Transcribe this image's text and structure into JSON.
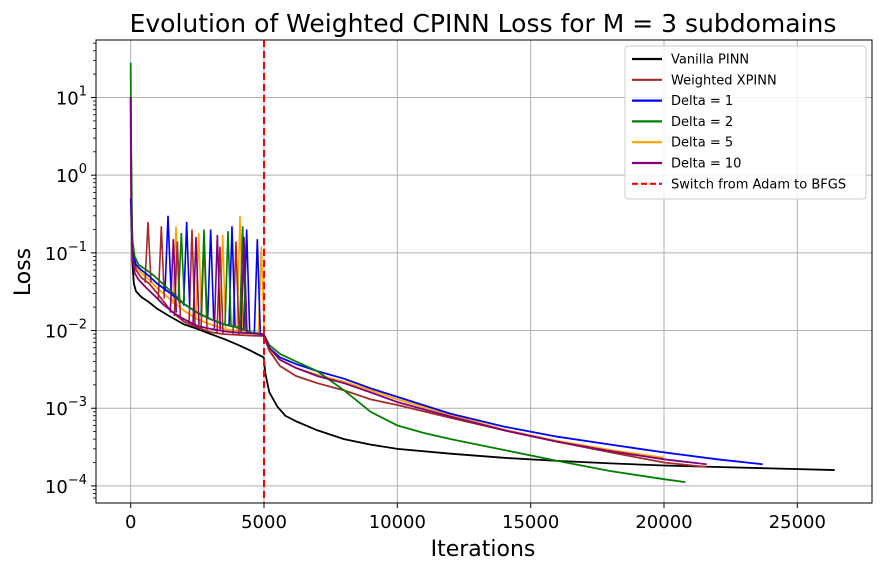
{
  "chart_data": {
    "type": "line",
    "title": "Evolution of Weighted CPINN Loss for M = 3 subdomains",
    "xlabel": "Iterations",
    "ylabel": "Loss",
    "yscale": "log",
    "xlim": [
      -1300,
      27800
    ],
    "ylim_exponent": [
      -4.22,
      1.74
    ],
    "grid": true,
    "legend_position": "top-right",
    "x_ticks": [
      0,
      5000,
      10000,
      15000,
      20000,
      25000
    ],
    "x_tick_labels": [
      "0",
      "5000",
      "10000",
      "15000",
      "20000",
      "25000"
    ],
    "y_ticks": [
      -4,
      -3,
      -2,
      -1,
      0,
      1
    ],
    "y_tick_labels": [
      {
        "base": "10",
        "exp": "−4"
      },
      {
        "base": "10",
        "exp": "−3"
      },
      {
        "base": "10",
        "exp": "−2"
      },
      {
        "base": "10",
        "exp": "−1"
      },
      {
        "base": "10",
        "exp": "0"
      },
      {
        "base": "10",
        "exp": "1"
      }
    ],
    "vline": {
      "x": 5000,
      "label": "Switch from Adam to BFGS",
      "color": "#ff0000"
    },
    "series": [
      {
        "name": "Vanilla PINN",
        "color": "#000000",
        "x": [
          0,
          30,
          60,
          120,
          200,
          400,
          700,
          1000,
          1500,
          2000,
          2500,
          3000,
          3500,
          4000,
          4500,
          4990,
          5050,
          5200,
          5500,
          5800,
          6200,
          7000,
          8000,
          9000,
          10000,
          12000,
          14000,
          16000,
          18000,
          20000,
          22000,
          24000,
          26400
        ],
        "y": [
          10,
          0.5,
          0.08,
          0.04,
          0.032,
          0.027,
          0.023,
          0.019,
          0.015,
          0.012,
          0.0105,
          0.009,
          0.0078,
          0.0066,
          0.0055,
          0.0045,
          0.0028,
          0.0016,
          0.00105,
          0.0008,
          0.00068,
          0.00052,
          0.0004,
          0.00034,
          0.0003,
          0.00026,
          0.00023,
          0.00021,
          0.000195,
          0.000183,
          0.000175,
          0.000168,
          0.00016
        ]
      },
      {
        "name": "Weighted XPINN",
        "color": "#a52a2a",
        "x": [
          0,
          30,
          80,
          200,
          400,
          700,
          1000,
          1500,
          2000,
          2500,
          3000,
          3500,
          4000,
          4500,
          4990,
          5200,
          5600,
          6200,
          7000,
          8000,
          9000,
          10000,
          12000,
          14000,
          16000,
          18000,
          20000,
          21600
        ],
        "y": [
          5,
          0.4,
          0.1,
          0.06,
          0.048,
          0.04,
          0.03,
          0.018,
          0.013,
          0.011,
          0.0095,
          0.009,
          0.0088,
          0.0086,
          0.0085,
          0.0055,
          0.0035,
          0.0026,
          0.0021,
          0.0017,
          0.0013,
          0.0011,
          0.00075,
          0.00052,
          0.00037,
          0.00027,
          0.0002,
          0.000175
        ],
        "spikes": [
          [
            650,
            0.25
          ],
          [
            1150,
            0.22
          ],
          [
            1750,
            0.14
          ],
          [
            2300,
            0.2
          ],
          [
            2750,
            0.15
          ],
          [
            3350,
            0.12
          ],
          [
            3950,
            0.14
          ]
        ]
      },
      {
        "name": "Delta = 1",
        "color": "#0000ff",
        "x": [
          0,
          30,
          80,
          200,
          400,
          700,
          1000,
          1500,
          2000,
          2500,
          3000,
          3500,
          4000,
          4500,
          4990,
          5200,
          5600,
          6200,
          7000,
          8000,
          9000,
          10000,
          12000,
          14000,
          16000,
          18000,
          20000,
          22000,
          23700
        ],
        "y": [
          0.5,
          0.25,
          0.1,
          0.07,
          0.06,
          0.05,
          0.04,
          0.03,
          0.022,
          0.017,
          0.014,
          0.012,
          0.011,
          0.0095,
          0.0088,
          0.006,
          0.0045,
          0.0037,
          0.003,
          0.0024,
          0.0018,
          0.0014,
          0.00085,
          0.00058,
          0.00043,
          0.00034,
          0.00027,
          0.00022,
          0.00019
        ],
        "spikes": [
          [
            1400,
            0.3
          ],
          [
            2100,
            0.25
          ],
          [
            3000,
            0.2
          ],
          [
            3800,
            0.22
          ],
          [
            4350,
            0.2
          ],
          [
            4750,
            0.15
          ]
        ]
      },
      {
        "name": "Delta = 2",
        "color": "#008000",
        "x": [
          0,
          20,
          60,
          150,
          300,
          600,
          900,
          1200,
          1600,
          2000,
          2500,
          3000,
          3500,
          4000,
          4500,
          4990,
          5200,
          5600,
          6200,
          7000,
          8000,
          9000,
          10000,
          11000,
          12000,
          14000,
          16000,
          18000,
          20000,
          20800
        ],
        "y": [
          28,
          2,
          0.15,
          0.09,
          0.07,
          0.06,
          0.05,
          0.04,
          0.03,
          0.022,
          0.017,
          0.014,
          0.012,
          0.011,
          0.0095,
          0.009,
          0.0065,
          0.005,
          0.004,
          0.003,
          0.0017,
          0.0009,
          0.0006,
          0.00048,
          0.0004,
          0.00029,
          0.00021,
          0.000155,
          0.000122,
          0.000112
        ],
        "spikes": [
          [
            1900,
            0.18
          ],
          [
            2750,
            0.2
          ],
          [
            3650,
            0.19
          ],
          [
            4200,
            0.22
          ]
        ]
      },
      {
        "name": "Delta = 5",
        "color": "#ffa500",
        "x": [
          0,
          30,
          80,
          200,
          400,
          700,
          1000,
          1500,
          2000,
          2500,
          3000,
          3500,
          4000,
          4500,
          4990,
          5200,
          5600,
          6200,
          7000,
          8000,
          9000,
          10000,
          12000,
          14000,
          16000,
          18000,
          20000
        ],
        "y": [
          3,
          0.3,
          0.09,
          0.065,
          0.055,
          0.045,
          0.035,
          0.025,
          0.018,
          0.014,
          0.012,
          0.0105,
          0.0098,
          0.0092,
          0.0088,
          0.0058,
          0.0042,
          0.0033,
          0.0027,
          0.0022,
          0.0017,
          0.0013,
          0.00082,
          0.00053,
          0.00038,
          0.00029,
          0.00023
        ],
        "spikes": [
          [
            1700,
            0.22
          ],
          [
            2550,
            0.18
          ],
          [
            3450,
            0.17
          ],
          [
            4100,
            0.3
          ],
          [
            4900,
            0.12
          ]
        ]
      },
      {
        "name": "Delta = 10",
        "color": "#800080",
        "x": [
          0,
          20,
          60,
          150,
          300,
          600,
          900,
          1200,
          1600,
          2000,
          2500,
          3000,
          3500,
          4000,
          4500,
          4990,
          5200,
          5600,
          6200,
          7000,
          8000,
          9000,
          10000,
          12000,
          14000,
          16000,
          18000,
          20000,
          21600
        ],
        "y": [
          10,
          0.5,
          0.09,
          0.055,
          0.045,
          0.035,
          0.028,
          0.022,
          0.017,
          0.014,
          0.0115,
          0.0105,
          0.0098,
          0.0094,
          0.0092,
          0.009,
          0.006,
          0.0042,
          0.0033,
          0.0026,
          0.0021,
          0.0016,
          0.0012,
          0.00078,
          0.00052,
          0.00037,
          0.00028,
          0.00022,
          0.00019
        ],
        "spikes": [
          [
            1600,
            0.15
          ],
          [
            2450,
            0.16
          ],
          [
            3250,
            0.17
          ],
          [
            4250,
            0.16
          ]
        ]
      }
    ]
  }
}
